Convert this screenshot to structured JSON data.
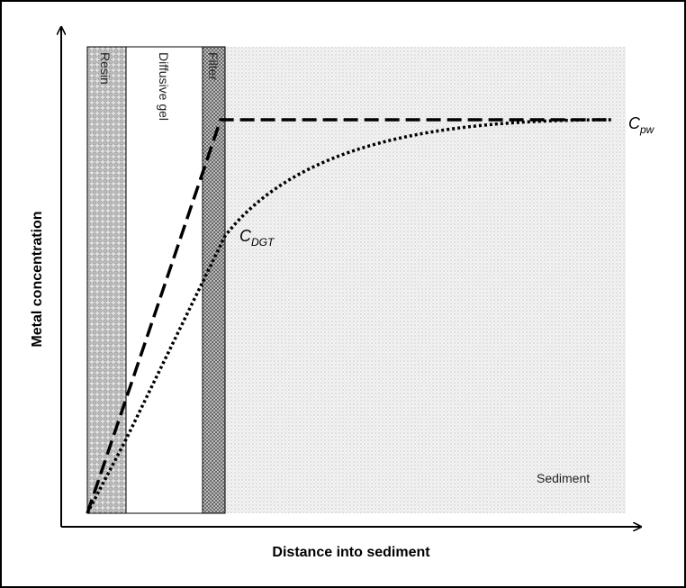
{
  "layers": {
    "resin": "Resin",
    "gel": "Diffusive gel",
    "filter": "Filter",
    "sediment": "Sediment"
  },
  "labels": {
    "cpw": {
      "main": "C",
      "sub": "pw"
    },
    "cdgt": {
      "main": "C",
      "sub": "DGT"
    }
  },
  "axes": {
    "x": "Distance into sediment",
    "y": "Metal concentration"
  }
}
